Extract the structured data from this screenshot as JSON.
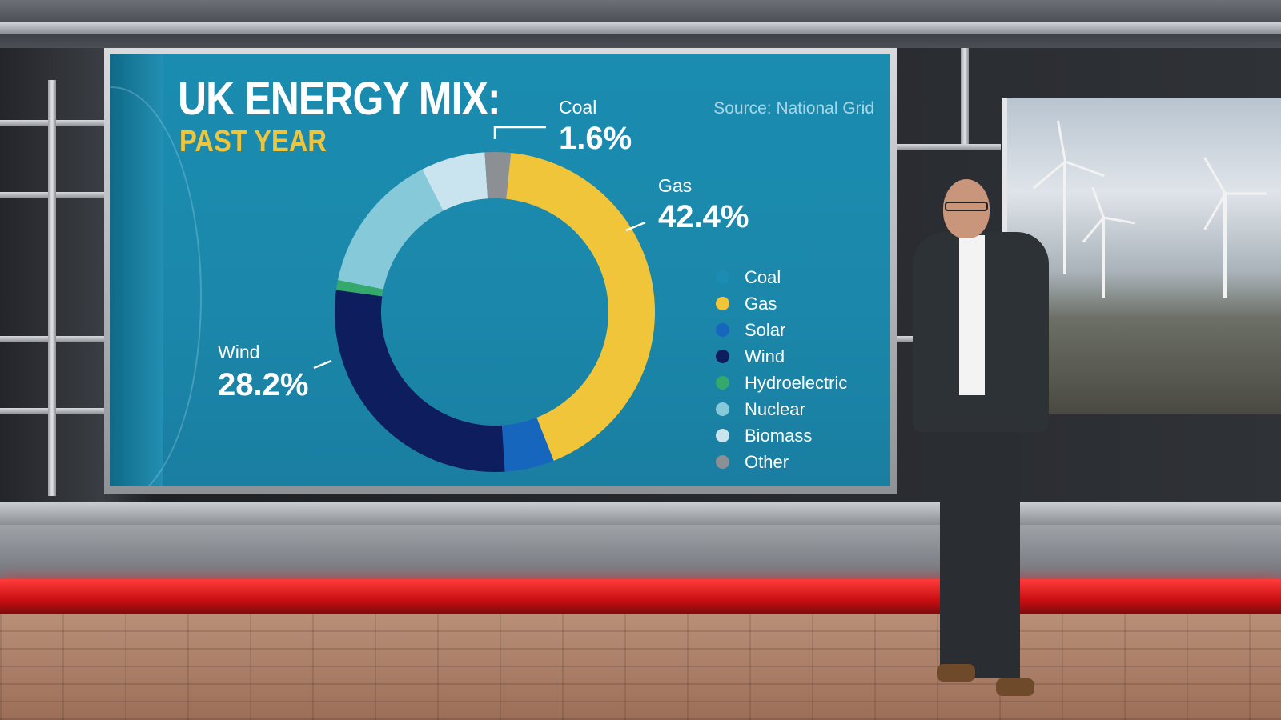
{
  "chart_data": {
    "type": "pie",
    "title": "UK ENERGY MIX:",
    "subtitle": "PAST YEAR",
    "source": "Source: National Grid",
    "slices": [
      {
        "name": "Coal",
        "value": 1.6,
        "color": "#8c8f93"
      },
      {
        "name": "Gas",
        "value": 42.4,
        "color": "#f0c53a"
      },
      {
        "name": "Solar",
        "value": 5.0,
        "color": "#1766be"
      },
      {
        "name": "Wind",
        "value": 28.2,
        "color": "#0d1d5e"
      },
      {
        "name": "Hydroelectric",
        "value": 1.0,
        "color": "#35a86b"
      },
      {
        "name": "Nuclear",
        "value": 14.3,
        "color": "#86cad9"
      },
      {
        "name": "Biomass",
        "value": 6.5,
        "color": "#c9e4ee"
      },
      {
        "name": "Other",
        "value": 1.0,
        "color": "#8c8f93"
      }
    ],
    "legend": [
      {
        "label": "Coal",
        "color": "#1d8cb4"
      },
      {
        "label": "Gas",
        "color": "#f0c53a"
      },
      {
        "label": "Solar",
        "color": "#1766be"
      },
      {
        "label": "Wind",
        "color": "#0d1d5e"
      },
      {
        "label": "Hydroelectric",
        "color": "#35a86b"
      },
      {
        "label": "Nuclear",
        "color": "#86cad9"
      },
      {
        "label": "Biomass",
        "color": "#c9e4ee"
      },
      {
        "label": "Other",
        "color": "#8c8f93"
      }
    ],
    "callouts": [
      {
        "name": "Coal",
        "value_label": "1.6%"
      },
      {
        "name": "Gas",
        "value_label": "42.4%"
      },
      {
        "name": "Wind",
        "value_label": "28.2%"
      }
    ],
    "legend_position": "right"
  }
}
